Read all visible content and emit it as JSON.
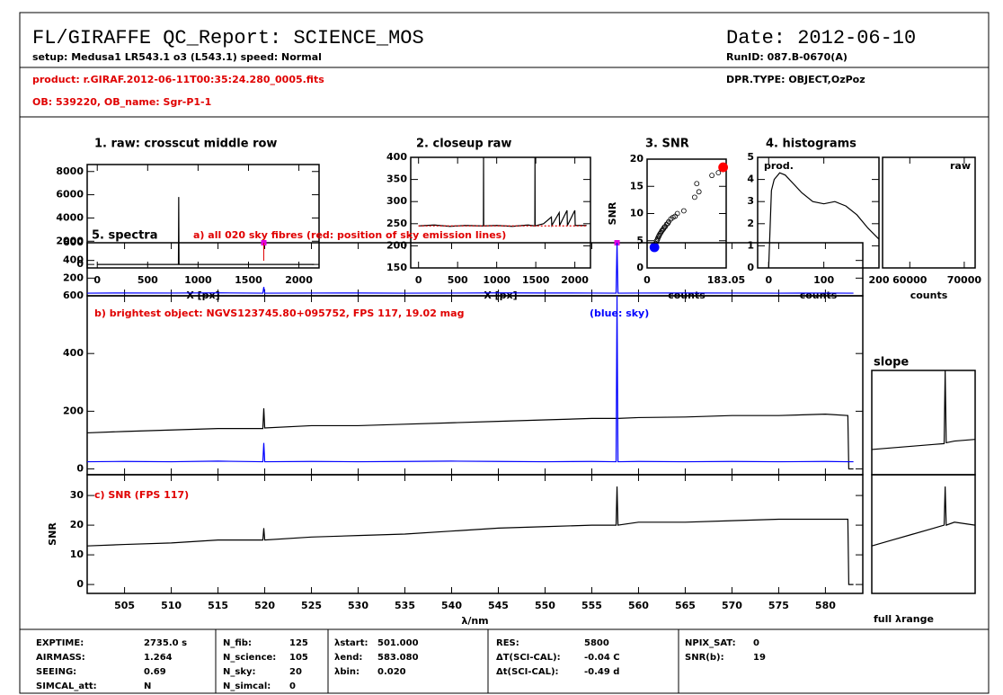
{
  "header": {
    "title": "FL/GIRAFFE QC_Report: SCIENCE_MOS",
    "setup": "setup: Medusa1 LR543.1 o3 (L543.1) speed: Normal",
    "product": "product: r.GIRAF.2012-06-11T00:35:24.280_0005.fits",
    "ob": "OB: 539220, OB_name: Sgr-P1-1",
    "date": "Date: 2012-06-10",
    "runid": "RunID: 087.B-0670(A)",
    "dpr": "DPR.TYPE: OBJECT,OzPoz"
  },
  "chart_data": [
    {
      "type": "line",
      "title": "1. raw: crosscut middle row",
      "xlabel": "X [px]",
      "xlim": [
        -100,
        2200
      ],
      "xticks": [
        0,
        500,
        1000,
        1500,
        2000
      ],
      "ylim": [
        -300,
        8600
      ],
      "yticks": [
        0,
        2000,
        4000,
        6000,
        8000
      ],
      "series": [
        {
          "color": "#000000",
          "x": [
            0,
            805,
            808,
            811,
            2150
          ],
          "values": [
            0,
            0,
            5800,
            0,
            0
          ]
        }
      ]
    },
    {
      "type": "line",
      "title": "2. closeup raw",
      "xlabel": "X [px]",
      "xlim": [
        -100,
        2200
      ],
      "xticks": [
        0,
        500,
        1000,
        1500,
        2000
      ],
      "ylim": [
        150,
        400
      ],
      "yticks": [
        150,
        200,
        250,
        300,
        350,
        400
      ],
      "series": [
        {
          "color": "#000000",
          "x": [
            0,
            200,
            400,
            600,
            800,
            830,
            832,
            834,
            1000,
            1200,
            1400,
            1488,
            1490,
            1492,
            1600,
            1700,
            1705,
            1800,
            1805,
            1900,
            1905,
            2000,
            2005,
            2150
          ],
          "values": [
            245,
            247,
            244,
            246,
            245,
            245,
            400,
            245,
            246,
            244,
            247,
            245,
            400,
            245,
            250,
            265,
            246,
            275,
            246,
            280,
            246,
            280,
            246,
            246
          ]
        },
        {
          "color": "#e00000",
          "x": [
            0,
            2150
          ],
          "values": [
            245,
            245
          ]
        }
      ]
    },
    {
      "type": "scatter",
      "title": "3. SNR",
      "xlabel": "counts",
      "ylabel": "SNR",
      "xlim": [
        0,
        183.05
      ],
      "xticks": [
        0,
        183.05
      ],
      "ylim": [
        0,
        20
      ],
      "yticks": [
        0,
        5,
        10,
        15,
        20
      ],
      "series": [
        {
          "color": "#000000",
          "filled": false,
          "x": [
            20,
            22,
            24,
            25,
            27,
            28,
            30,
            32,
            34,
            36,
            38,
            40,
            42,
            45,
            48,
            50,
            55,
            60,
            65,
            70,
            85,
            110,
            115,
            120,
            150,
            165
          ],
          "values": [
            4.5,
            5,
            5.2,
            5.5,
            5.8,
            6,
            6.3,
            6.5,
            6.8,
            7,
            7.2,
            7.5,
            7.6,
            8,
            8.2,
            8.5,
            9,
            9.3,
            9.5,
            10,
            10.5,
            13,
            15.5,
            14,
            17,
            17.5
          ]
        },
        {
          "color": "#0000ff",
          "filled": true,
          "x": [
            17
          ],
          "values": [
            3.8
          ]
        },
        {
          "color": "#ff0000",
          "filled": true,
          "x": [
            176
          ],
          "values": [
            18.5
          ]
        }
      ]
    },
    {
      "type": "line",
      "title": "4. histograms",
      "label": "prod.",
      "xlabel": "counts",
      "xlim": [
        -20,
        200
      ],
      "xticks": [
        0,
        100,
        200
      ],
      "ylim": [
        0,
        5
      ],
      "yticks": [
        0,
        1,
        2,
        3,
        4,
        5
      ],
      "series": [
        {
          "color": "#000000",
          "x": [
            0,
            5,
            10,
            20,
            30,
            45,
            60,
            80,
            100,
            120,
            140,
            160,
            180,
            200
          ],
          "values": [
            0,
            3.5,
            4,
            4.3,
            4.2,
            3.8,
            3.4,
            3.0,
            2.9,
            3.0,
            2.8,
            2.4,
            1.8,
            1.3
          ]
        }
      ]
    },
    {
      "type": "line",
      "label": "raw",
      "xlabel": "counts",
      "xlim": [
        55000,
        72000
      ],
      "xticks": [
        60000,
        70000
      ],
      "ylim": [
        0,
        5
      ],
      "series": []
    },
    {
      "type": "line",
      "title": "5. spectra",
      "label": "a) all 020 sky fibres (red: position of sky emission lines)",
      "xlim": [
        501,
        584
      ],
      "ylim": [
        0,
        600
      ],
      "yticks": [
        200,
        400,
        600
      ],
      "sky_lines": [
        519.9,
        557.7
      ],
      "sky_line_color": "#e000e0",
      "x": [
        501,
        505,
        510,
        515,
        519.8,
        519.9,
        520,
        525,
        530,
        535,
        540,
        545,
        550,
        555,
        557.6,
        557.7,
        557.8,
        560,
        565,
        570,
        575,
        580,
        582.4,
        582.5,
        583
      ],
      "series": [
        {
          "color": "#0000ff",
          "values": [
            30,
            32,
            31,
            33,
            30,
            100,
            30,
            31,
            32,
            30,
            31,
            33,
            32,
            31,
            30,
            600,
            30,
            31,
            32,
            31,
            30,
            31,
            30,
            30,
            30
          ]
        }
      ]
    },
    {
      "type": "line",
      "label": "b) brightest object: NGVS123745.80+095752, FPS 117, 19.02 mag",
      "label2": "(blue: sky)",
      "xlim": [
        501,
        584
      ],
      "ylim": [
        -20,
        600
      ],
      "yticks": [
        0,
        200,
        400,
        600
      ],
      "x": [
        501,
        505,
        510,
        515,
        519.8,
        519.9,
        520,
        525,
        530,
        535,
        540,
        545,
        550,
        555,
        557.6,
        557.7,
        557.8,
        560,
        565,
        570,
        575,
        580,
        582.4,
        582.5,
        583
      ],
      "series": [
        {
          "color": "#000000",
          "values": [
            125,
            130,
            135,
            140,
            140,
            210,
            142,
            150,
            150,
            155,
            160,
            165,
            170,
            175,
            175,
            175,
            175,
            178,
            180,
            185,
            185,
            190,
            185,
            0,
            0
          ]
        },
        {
          "color": "#0000ff",
          "values": [
            25,
            26,
            25,
            27,
            25,
            90,
            25,
            26,
            25,
            26,
            27,
            26,
            25,
            26,
            25,
            600,
            25,
            26,
            25,
            26,
            25,
            26,
            25,
            25,
            25
          ]
        }
      ]
    },
    {
      "type": "line",
      "label": "c) SNR (FPS 117)",
      "xlabel": "λ/nm",
      "ylabel": "SNR",
      "xlim": [
        501,
        584
      ],
      "xticks": [
        505,
        510,
        515,
        520,
        525,
        530,
        535,
        540,
        545,
        550,
        555,
        560,
        565,
        570,
        575,
        580
      ],
      "ylim": [
        -3,
        37
      ],
      "yticks": [
        0,
        10,
        20,
        30
      ],
      "x": [
        501,
        505,
        510,
        515,
        519.8,
        519.9,
        520,
        525,
        530,
        535,
        540,
        545,
        550,
        555,
        557.6,
        557.7,
        557.8,
        560,
        565,
        570,
        575,
        580,
        582.4,
        582.5,
        583
      ],
      "series": [
        {
          "color": "#000000",
          "values": [
            13,
            13.5,
            14,
            15,
            15,
            19,
            15,
            16,
            16.5,
            17,
            18,
            19,
            19.5,
            20,
            20,
            33,
            20,
            21,
            21,
            21.5,
            22,
            22,
            22,
            0,
            0
          ]
        }
      ]
    },
    {
      "type": "line",
      "title": "slope",
      "xlim": [
        0,
        1
      ],
      "ylim": [
        -20,
        600
      ],
      "x": [
        0,
        0.2,
        0.4,
        0.6,
        0.7,
        0.71,
        0.72,
        0.8,
        1
      ],
      "series": [
        {
          "color": "#000000",
          "values": [
            130,
            140,
            150,
            160,
            165,
            600,
            170,
            180,
            190
          ]
        }
      ]
    },
    {
      "type": "line",
      "xlabel": "full λrange",
      "xlim": [
        0,
        1
      ],
      "ylim": [
        -3,
        37
      ],
      "x": [
        0,
        0.2,
        0.4,
        0.6,
        0.7,
        0.71,
        0.72,
        0.8,
        1
      ],
      "series": [
        {
          "color": "#000000",
          "values": [
            13,
            15,
            17,
            19,
            20,
            33,
            20,
            21,
            20
          ]
        }
      ]
    }
  ],
  "footer": {
    "columns": [
      [
        {
          "label": "EXPTIME:",
          "value": "2735.0 s"
        },
        {
          "label": "AIRMASS:",
          "value": "1.264"
        },
        {
          "label": "SEEING:",
          "value": "0.69"
        },
        {
          "label": "SIMCAL_att:",
          "value": "N"
        }
      ],
      [
        {
          "label": "N_fib:",
          "value": "125"
        },
        {
          "label": "N_science:",
          "value": "105"
        },
        {
          "label": "N_sky:",
          "value": "20"
        },
        {
          "label": "N_simcal:",
          "value": "0"
        }
      ],
      [
        {
          "label": "λstart:",
          "value": "501.000"
        },
        {
          "label": "λend:",
          "value": "583.080"
        },
        {
          "label": "λbin:",
          "value": "0.020"
        }
      ],
      [
        {
          "label": "RES:",
          "value": "5800"
        },
        {
          "label": "ΔT(SCI-CAL):",
          "value": "-0.04 C"
        },
        {
          "label": "Δt(SCI-CAL):",
          "value": "-0.49 d"
        }
      ],
      [
        {
          "label": "NPIX_SAT:",
          "value": "0"
        },
        {
          "label": "SNR(b):",
          "value": "19"
        }
      ]
    ]
  }
}
